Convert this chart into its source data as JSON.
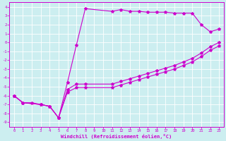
{
  "xlabel": "Windchill (Refroidissement éolien,°C)",
  "bg_color": "#cceef0",
  "line_color": "#cc00cc",
  "grid_color": "#aadddd",
  "xlim": [
    -0.5,
    23.5
  ],
  "ylim": [
    -9.5,
    4.5
  ],
  "xticks": [
    0,
    1,
    2,
    3,
    4,
    5,
    6,
    7,
    8,
    9,
    10,
    11,
    12,
    13,
    14,
    15,
    16,
    17,
    18,
    19,
    20,
    21,
    22,
    23
  ],
  "yticks": [
    -9,
    -8,
    -7,
    -6,
    -5,
    -4,
    -3,
    -2,
    -1,
    0,
    1,
    2,
    3,
    4
  ],
  "line1_x": [
    0,
    1,
    2,
    3,
    4,
    5,
    6,
    7,
    8,
    11,
    12,
    13,
    14,
    15,
    16,
    17,
    18,
    19,
    20,
    21,
    22,
    23
  ],
  "line1_y": [
    -6,
    -6.8,
    -6.8,
    -7,
    -7.2,
    -8.5,
    -4.5,
    -0.3,
    3.8,
    3.5,
    3.7,
    3.5,
    3.5,
    3.4,
    3.4,
    3.4,
    3.3,
    3.3,
    3.3,
    2.0,
    1.2,
    1.5
  ],
  "line2_x": [
    0,
    1,
    3,
    4,
    5,
    6,
    7,
    8,
    11,
    12,
    13,
    14,
    15,
    16,
    17,
    18,
    19,
    20,
    21,
    22,
    23
  ],
  "line2_y": [
    -6,
    -6.8,
    -7,
    -7.2,
    -8.5,
    -5.3,
    -4.7,
    -4.7,
    -4.7,
    -4.4,
    -4.1,
    -3.8,
    -3.5,
    -3.2,
    -2.9,
    -2.6,
    -2.2,
    -1.8,
    -1.2,
    -0.5,
    0.0
  ],
  "line3_x": [
    0,
    1,
    3,
    4,
    5,
    6,
    7,
    8,
    11,
    12,
    13,
    14,
    15,
    16,
    17,
    18,
    19,
    20,
    21,
    22,
    23
  ],
  "line3_y": [
    -6,
    -6.8,
    -7,
    -7.2,
    -8.5,
    -5.6,
    -5.1,
    -5.1,
    -5.1,
    -4.8,
    -4.5,
    -4.2,
    -3.9,
    -3.6,
    -3.3,
    -3.0,
    -2.6,
    -2.2,
    -1.6,
    -0.9,
    -0.4
  ]
}
